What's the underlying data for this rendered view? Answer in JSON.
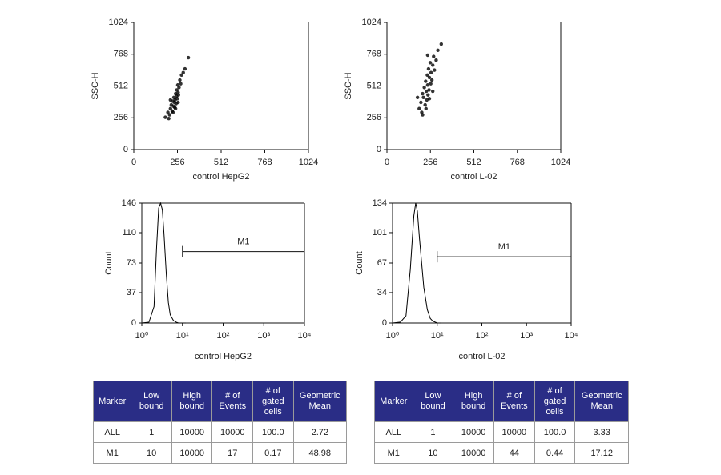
{
  "chart_data": [
    {
      "type": "scatter",
      "xlabel": "control HepG2",
      "ylabel": "SSC-H",
      "color": "#000000",
      "xlim": [
        0,
        1024
      ],
      "ylim": [
        0,
        1024
      ],
      "xticks": [
        0,
        256,
        512,
        768,
        1024
      ],
      "yticks": [
        0,
        256,
        512,
        768,
        1024
      ],
      "x": [
        200,
        210,
        215,
        220,
        225,
        228,
        232,
        235,
        238,
        240,
        242,
        245,
        248,
        250,
        252,
        255,
        258,
        260,
        262,
        265,
        270,
        275,
        280,
        290,
        300,
        230,
        245,
        215,
        205,
        260,
        320,
        185
      ],
      "values": [
        300,
        280,
        330,
        360,
        310,
        390,
        350,
        420,
        380,
        340,
        400,
        450,
        370,
        430,
        480,
        410,
        520,
        460,
        440,
        500,
        560,
        530,
        600,
        620,
        650,
        300,
        330,
        400,
        250,
        380,
        740,
        260
      ]
    },
    {
      "type": "scatter",
      "xlabel": "control L-02",
      "ylabel": "SSC-H",
      "color": "#000000",
      "xlim": [
        0,
        1024
      ],
      "ylim": [
        0,
        1024
      ],
      "xticks": [
        0,
        256,
        512,
        768,
        1024
      ],
      "yticks": [
        0,
        256,
        512,
        768,
        1024
      ],
      "x": [
        190,
        200,
        205,
        210,
        215,
        220,
        225,
        228,
        232,
        235,
        238,
        240,
        242,
        245,
        248,
        250,
        255,
        258,
        260,
        265,
        270,
        275,
        280,
        290,
        300,
        210,
        230,
        250,
        270,
        320,
        180,
        240
      ],
      "values": [
        330,
        380,
        300,
        450,
        420,
        500,
        360,
        550,
        470,
        400,
        600,
        520,
        440,
        650,
        480,
        580,
        700,
        530,
        620,
        560,
        680,
        750,
        640,
        720,
        800,
        280,
        330,
        410,
        470,
        850,
        420,
        760
      ]
    },
    {
      "type": "line",
      "xlabel": "control HepG2",
      "ylabel": "Count",
      "color": "#000000",
      "xlog": true,
      "xlim": [
        1,
        10000
      ],
      "ylim": [
        0,
        146
      ],
      "xticks": [
        {
          "value": 1,
          "label": "10⁰"
        },
        {
          "value": 10,
          "label": "10¹"
        },
        {
          "value": 100,
          "label": "10²"
        },
        {
          "value": 1000,
          "label": "10³"
        },
        {
          "value": 10000,
          "label": "10⁴"
        }
      ],
      "yticks": [
        0,
        37,
        73,
        110,
        146
      ],
      "x": [
        1,
        1.5,
        2,
        2.3,
        2.6,
        2.9,
        3.2,
        3.5,
        4,
        4.5,
        5,
        6,
        7,
        8,
        10,
        12
      ],
      "values": [
        0,
        1,
        20,
        90,
        140,
        146,
        138,
        110,
        60,
        25,
        10,
        3,
        1,
        0,
        0,
        0
      ],
      "annotations": [
        {
          "text": "M1",
          "x": [
            10,
            10000
          ],
          "y": 87
        }
      ]
    },
    {
      "type": "line",
      "xlabel": "control L-02",
      "ylabel": "Count",
      "color": "#000000",
      "xlog": true,
      "xlim": [
        1,
        10000
      ],
      "ylim": [
        0,
        134
      ],
      "xticks": [
        {
          "value": 1,
          "label": "10⁰"
        },
        {
          "value": 10,
          "label": "10¹"
        },
        {
          "value": 100,
          "label": "10²"
        },
        {
          "value": 1000,
          "label": "10³"
        },
        {
          "value": 10000,
          "label": "10⁴"
        }
      ],
      "yticks": [
        0,
        34,
        67,
        101,
        134
      ],
      "x": [
        1,
        1.5,
        2,
        2.5,
        3,
        3.3,
        3.6,
        4,
        5,
        6,
        7,
        8,
        10,
        12
      ],
      "values": [
        0,
        1,
        8,
        60,
        120,
        134,
        125,
        95,
        40,
        15,
        5,
        2,
        0,
        0
      ],
      "annotations": [
        {
          "text": "M1",
          "x": [
            10,
            10000
          ],
          "y": 74
        }
      ]
    }
  ],
  "tables": [
    {
      "header": [
        "Marker",
        "Low bound",
        "High bound",
        "# of Events",
        "# of gated cells",
        "Geometric Mean"
      ],
      "rows": [
        [
          "ALL",
          "1",
          "10000",
          "10000",
          "100.0",
          "2.72"
        ],
        [
          "M1",
          "10",
          "10000",
          "17",
          "0.17",
          "48.98"
        ]
      ]
    },
    {
      "header": [
        "Marker",
        "Low bound",
        "High bound",
        "# of Events",
        "# of gated cells",
        "Geometric Mean"
      ],
      "rows": [
        [
          "ALL",
          "1",
          "10000",
          "10000",
          "100.0",
          "3.33"
        ],
        [
          "M1",
          "10",
          "10000",
          "44",
          "0.44",
          "17.12"
        ]
      ]
    }
  ]
}
